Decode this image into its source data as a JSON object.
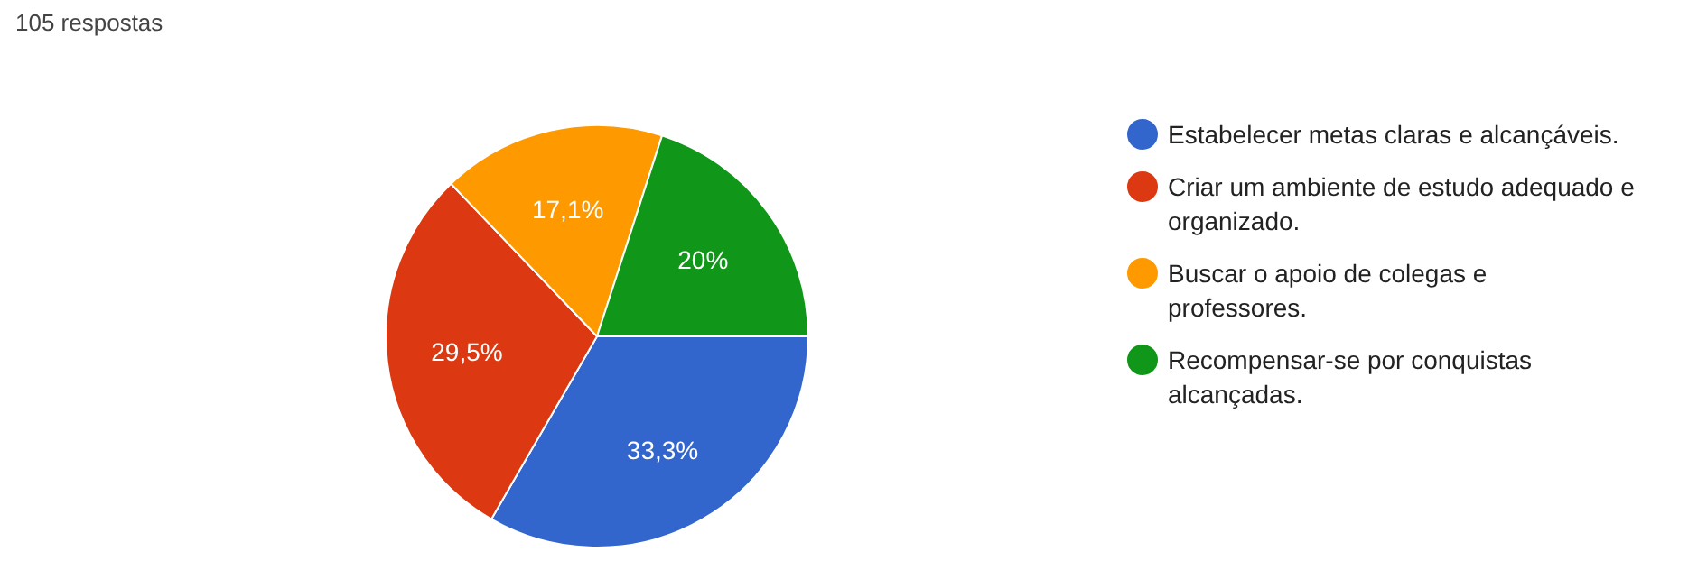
{
  "chart_data": {
    "type": "pie",
    "title": "105 respostas",
    "categories": [
      "Estabelecer metas claras e alcançáveis.",
      "Criar um ambiente de estudo adequado e organizado.",
      "Buscar o apoio de colegas e professores.",
      "Recompensar-se por conquistas alcançadas."
    ],
    "values": [
      33.3,
      29.5,
      17.1,
      20
    ],
    "value_labels": [
      "33,3%",
      "29,5%",
      "17,1%",
      "20%"
    ],
    "colors": [
      "#3366cc",
      "#dc3912",
      "#ff9900",
      "#109618"
    ],
    "legend": "right"
  }
}
